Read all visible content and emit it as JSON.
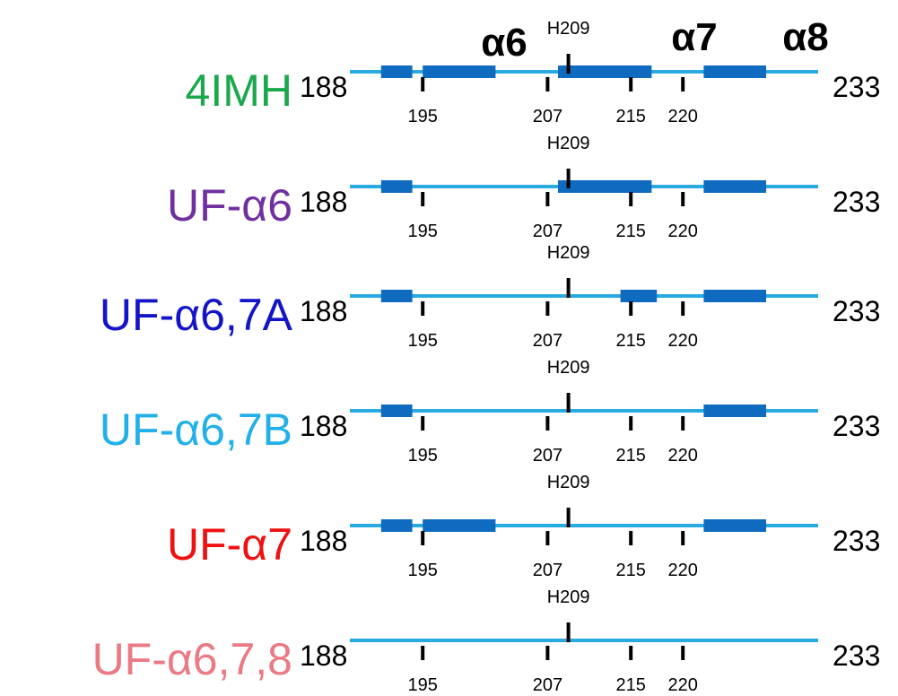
{
  "helix_headers": [
    "α6",
    "α7",
    "α8"
  ],
  "marker_label": "H209",
  "tick_labels": [
    "195",
    "207",
    "215",
    "220"
  ],
  "start_label": "188",
  "end_label": "233",
  "colors": {
    "line": "#29abe2",
    "helix": "#0f6bbf",
    "tick": "#000000"
  },
  "constructs": [
    {
      "name": "4IMH",
      "color": "#1aa84c",
      "helices": [
        [
          191,
          194
        ],
        [
          195,
          202
        ],
        [
          208,
          217
        ],
        [
          222,
          228
        ]
      ]
    },
    {
      "name": "UF-α6",
      "color": "#7030a0",
      "helices": [
        [
          191,
          194
        ],
        [
          208,
          217
        ],
        [
          222,
          228
        ]
      ]
    },
    {
      "name": "UF-α6,7A",
      "color": "#1414c8",
      "helices": [
        [
          191,
          194
        ],
        [
          214,
          217.5
        ],
        [
          222,
          228
        ]
      ]
    },
    {
      "name": "UF-α6,7B",
      "color": "#22b0ea",
      "helices": [
        [
          191,
          194
        ],
        [
          222,
          228
        ]
      ]
    },
    {
      "name": "UF-α7",
      "color": "#ee1111",
      "helices": [
        [
          191,
          194
        ],
        [
          195,
          202
        ],
        [
          222,
          228
        ]
      ]
    },
    {
      "name": "UF-α6,7,8",
      "color": "#ea7a84",
      "helices": []
    }
  ]
}
